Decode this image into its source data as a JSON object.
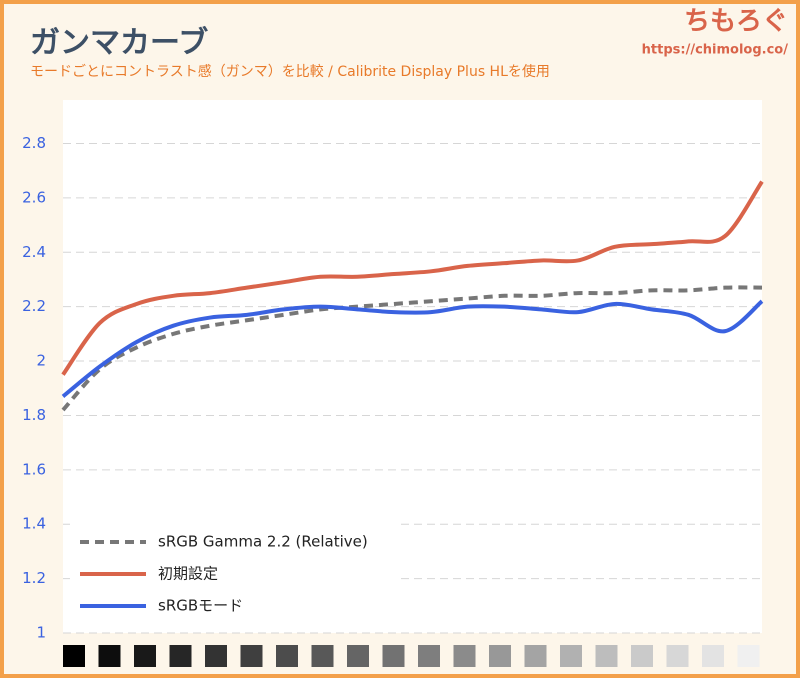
{
  "chart_data": {
    "type": "line",
    "title": "ガンマカーブ",
    "subtitle": "モードごとにコントラスト感（ガンマ）を比較 / Calibrite Display Plus HLを使用",
    "logo": "ちもろぐ",
    "url": "https://chimolog.co/",
    "categories": [
      null,
      null,
      null,
      null,
      null,
      null,
      null,
      null,
      null,
      null,
      null,
      null,
      null,
      null,
      null,
      null,
      null,
      null,
      null,
      null
    ],
    "series": [
      {
        "name": "sRGB Gamma 2.2 (Relative)",
        "color": "#777777",
        "dashed": true,
        "values": [
          1.82,
          1.97,
          2.05,
          2.1,
          2.13,
          2.15,
          2.17,
          2.19,
          2.2,
          2.21,
          2.22,
          2.23,
          2.24,
          2.24,
          2.25,
          2.25,
          2.26,
          2.26,
          2.27,
          2.27
        ]
      },
      {
        "name": "初期設定",
        "color": "#d9644a",
        "dashed": false,
        "values": [
          1.95,
          2.14,
          2.21,
          2.24,
          2.25,
          2.27,
          2.29,
          2.31,
          2.31,
          2.32,
          2.33,
          2.35,
          2.36,
          2.37,
          2.37,
          2.42,
          2.43,
          2.44,
          2.46,
          2.66
        ]
      },
      {
        "name": "sRGBモード",
        "color": "#3a62e0",
        "dashed": false,
        "values": [
          1.87,
          1.98,
          2.07,
          2.13,
          2.16,
          2.17,
          2.19,
          2.2,
          2.19,
          2.18,
          2.18,
          2.2,
          2.2,
          2.19,
          2.18,
          2.21,
          2.19,
          2.17,
          2.11,
          2.22
        ]
      }
    ],
    "ylim": [
      1,
      2.96
    ],
    "yticks": [
      1,
      1.2,
      1.4,
      1.6,
      1.8,
      2,
      2.2,
      2.4,
      2.6,
      2.8
    ],
    "grid": true,
    "legend": "lower-left"
  }
}
